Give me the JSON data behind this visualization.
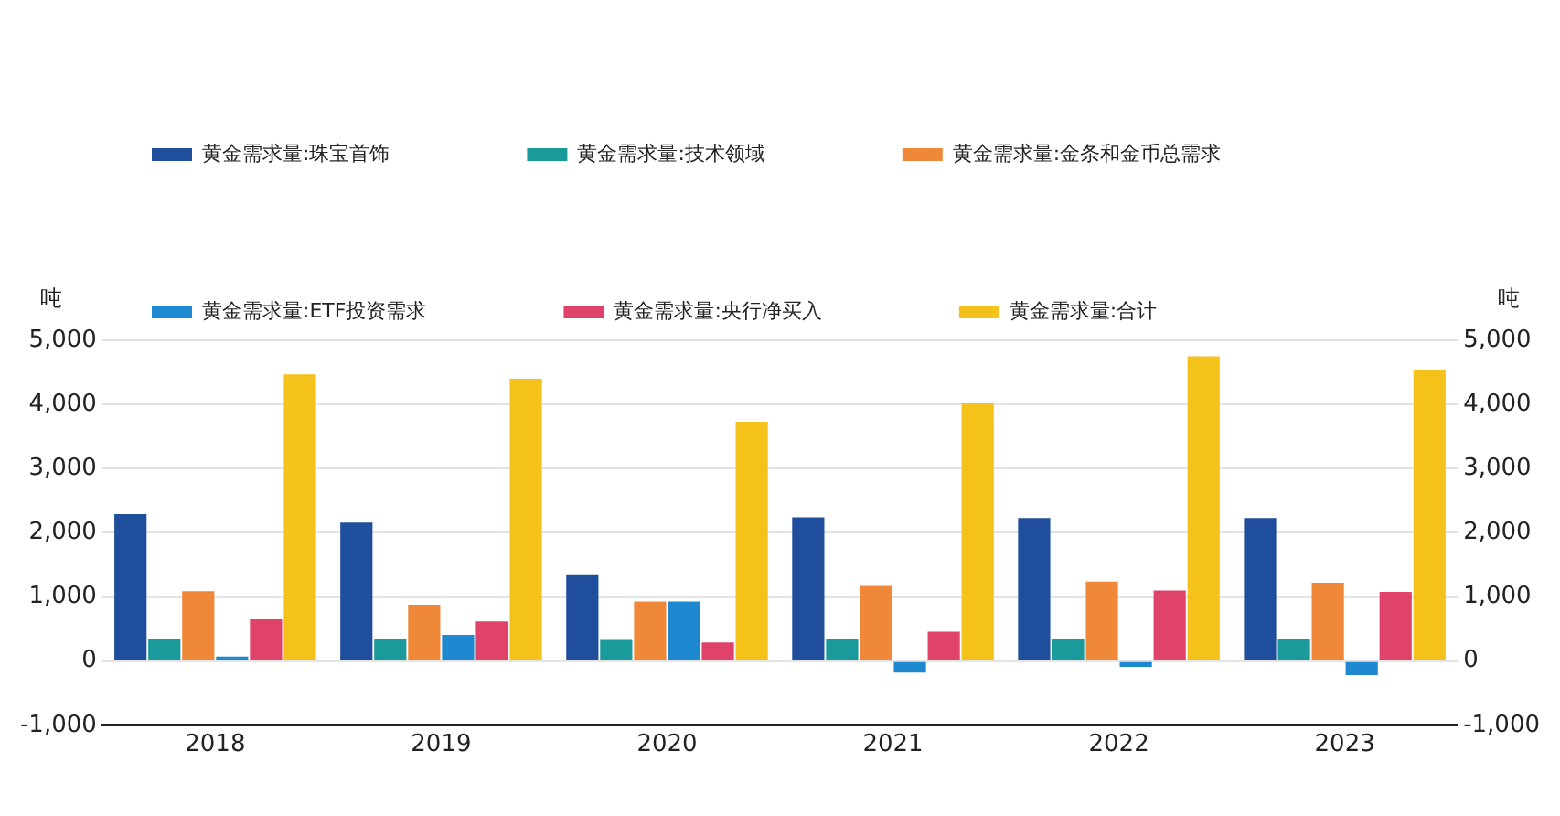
{
  "chart_data": {
    "type": "bar",
    "ylabel": "吨",
    "y2label": "吨",
    "categories": [
      "2018",
      "2019",
      "2020",
      "2021",
      "2022",
      "2023"
    ],
    "series": [
      {
        "name": "黄金需求量:珠宝首饰",
        "color": "#1f4e9c",
        "values": [
          2290,
          2160,
          1340,
          2240,
          2230,
          2230
        ]
      },
      {
        "name": "黄金需求量:技术领域",
        "color": "#1a9a9a",
        "values": [
          340,
          340,
          330,
          340,
          340,
          340
        ]
      },
      {
        "name": "黄金需求量:金条和金币总需求",
        "color": "#f0883a",
        "values": [
          1090,
          880,
          930,
          1170,
          1240,
          1220
        ]
      },
      {
        "name": "黄金需求量:ETF投资需求",
        "color": "#1e88d0",
        "values": [
          70,
          410,
          930,
          -180,
          -90,
          -220
        ]
      },
      {
        "name": "黄金需求量:央行净买入",
        "color": "#e0436a",
        "values": [
          650,
          620,
          290,
          460,
          1100,
          1080
        ]
      },
      {
        "name": "黄金需求量:合计",
        "color": "#f5c21b",
        "values": [
          4470,
          4400,
          3730,
          4020,
          4750,
          4530
        ]
      }
    ],
    "ylim": [
      -1000,
      5000
    ],
    "yticks": [
      {
        "value": -1000,
        "label": "-1,000"
      },
      0,
      {
        "value": 1000,
        "label": "1,000"
      },
      {
        "value": 2000,
        "label": "2,000"
      },
      {
        "value": 3000,
        "label": "3,000"
      },
      {
        "value": 4000,
        "label": "4,000"
      },
      {
        "value": 5000,
        "label": "5,000"
      }
    ],
    "y2lim": [
      -1000,
      5000
    ],
    "y2ticks": [
      {
        "value": -1000,
        "label": "-1,000"
      },
      0,
      {
        "value": 1000,
        "label": "1,000"
      },
      {
        "value": 2000,
        "label": "2,000"
      },
      {
        "value": 3000,
        "label": "3,000"
      },
      {
        "value": 4000,
        "label": "4,000"
      },
      {
        "value": 5000,
        "label": "5,000"
      }
    ],
    "grid": "y",
    "legend": "top"
  }
}
